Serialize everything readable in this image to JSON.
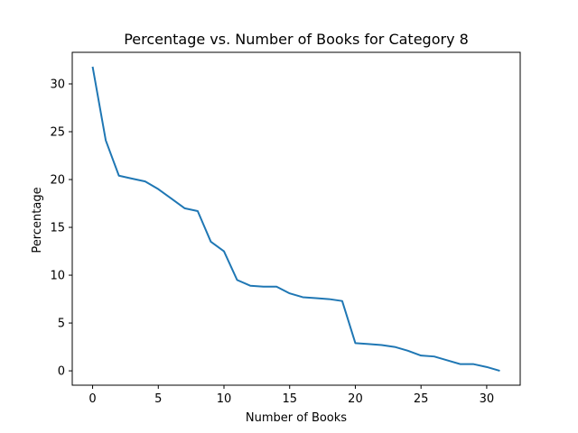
{
  "chart_data": {
    "type": "line",
    "title": "Percentage vs. Number of Books for Category 8",
    "xlabel": "Number of Books",
    "ylabel": "Percentage",
    "xlim": [
      -1.55,
      32.55
    ],
    "ylim": [
      -1.5,
      33.3
    ],
    "xticks": [
      0,
      5,
      10,
      15,
      20,
      25,
      30
    ],
    "yticks": [
      0,
      5,
      10,
      15,
      20,
      25,
      30
    ],
    "grid": false,
    "series_color": "#1f77b4",
    "series": [
      {
        "x": [
          0,
          1,
          2,
          3,
          4,
          5,
          6,
          7,
          8,
          9,
          10,
          11,
          12,
          13,
          14,
          15,
          16,
          17,
          18,
          19,
          20,
          21,
          22,
          23,
          24,
          25,
          26,
          27,
          28,
          29,
          30,
          31
        ],
        "values": [
          31.8,
          24.1,
          20.4,
          20.1,
          19.8,
          19.0,
          18.0,
          17.0,
          16.7,
          13.5,
          12.5,
          9.5,
          8.9,
          8.8,
          8.8,
          8.1,
          7.7,
          7.6,
          7.5,
          7.3,
          2.9,
          2.8,
          2.7,
          2.5,
          2.1,
          1.6,
          1.5,
          1.1,
          0.7,
          0.7,
          0.4,
          0.0
        ]
      }
    ]
  }
}
